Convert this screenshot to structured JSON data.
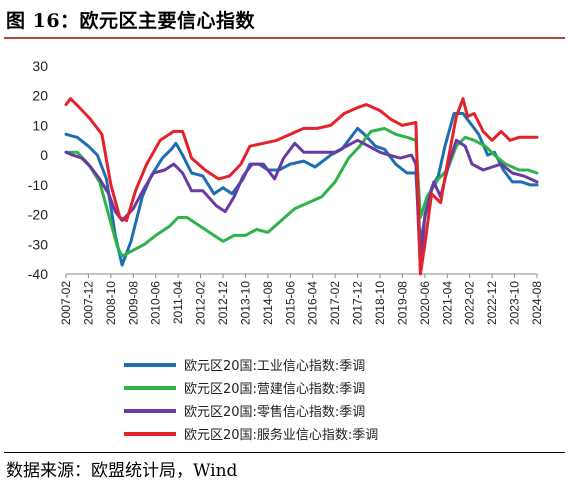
{
  "title": "图 16：欧元区主要信心指数",
  "source": "数据来源：欧盟统计局，Wind",
  "chart_data": {
    "type": "line",
    "title": "",
    "xlabel": "",
    "ylabel": "",
    "ylim": [
      -40,
      30
    ],
    "yticks": [
      30,
      20,
      10,
      0,
      -10,
      -20,
      -30,
      -40
    ],
    "xlim": [
      "2007-02",
      "2024-08"
    ],
    "xticks": [
      "2007-02",
      "2007-12",
      "2008-10",
      "2009-08",
      "2010-06",
      "2011-04",
      "2012-02",
      "2012-12",
      "2013-10",
      "2014-08",
      "2015-06",
      "2016-04",
      "2017-02",
      "2017-12",
      "2018-10",
      "2019-08",
      "2020-06",
      "2021-04",
      "2022-02",
      "2022-12",
      "2023-10",
      "2024-08"
    ],
    "grid": false,
    "legend_position": "bottom",
    "series": [
      {
        "name": "欧元区20国:工业信心指数:季调",
        "color": "#1f6db3",
        "points": [
          [
            "2007-02",
            7
          ],
          [
            "2007-07",
            6
          ],
          [
            "2007-12",
            3
          ],
          [
            "2008-04",
            0
          ],
          [
            "2008-08",
            -8
          ],
          [
            "2008-12",
            -27
          ],
          [
            "2009-03",
            -37
          ],
          [
            "2009-07",
            -29
          ],
          [
            "2009-12",
            -14
          ],
          [
            "2010-04",
            -7
          ],
          [
            "2010-09",
            -1
          ],
          [
            "2011-01",
            2
          ],
          [
            "2011-03",
            4
          ],
          [
            "2011-06",
            0
          ],
          [
            "2011-10",
            -6
          ],
          [
            "2012-03",
            -7
          ],
          [
            "2012-08",
            -13
          ],
          [
            "2012-12",
            -11
          ],
          [
            "2013-04",
            -13
          ],
          [
            "2013-09",
            -8
          ],
          [
            "2013-12",
            -3
          ],
          [
            "2014-04",
            -3
          ],
          [
            "2014-08",
            -5
          ],
          [
            "2015-01",
            -5
          ],
          [
            "2015-06",
            -3
          ],
          [
            "2015-12",
            -2
          ],
          [
            "2016-05",
            -4
          ],
          [
            "2016-12",
            0
          ],
          [
            "2017-05",
            2
          ],
          [
            "2017-12",
            9
          ],
          [
            "2018-03",
            7
          ],
          [
            "2018-08",
            3
          ],
          [
            "2018-12",
            2
          ],
          [
            "2019-05",
            -3
          ],
          [
            "2019-10",
            -6
          ],
          [
            "2020-02",
            -6
          ],
          [
            "2020-04",
            -30
          ],
          [
            "2020-06",
            -21
          ],
          [
            "2020-09",
            -11
          ],
          [
            "2020-12",
            -7
          ],
          [
            "2021-03",
            3
          ],
          [
            "2021-07",
            14
          ],
          [
            "2021-11",
            14
          ],
          [
            "2022-03",
            10
          ],
          [
            "2022-06",
            7
          ],
          [
            "2022-10",
            0
          ],
          [
            "2023-01",
            1
          ],
          [
            "2023-05",
            -5
          ],
          [
            "2023-09",
            -9
          ],
          [
            "2024-01",
            -9
          ],
          [
            "2024-05",
            -10
          ],
          [
            "2024-08",
            -10
          ]
        ]
      },
      {
        "name": "欧元区20国:营建信心指数:季调",
        "color": "#2db34a",
        "points": [
          [
            "2007-02",
            1
          ],
          [
            "2007-07",
            1
          ],
          [
            "2007-12",
            -3
          ],
          [
            "2008-05",
            -9
          ],
          [
            "2008-09",
            -20
          ],
          [
            "2009-01",
            -31
          ],
          [
            "2009-03",
            -34
          ],
          [
            "2009-08",
            -32
          ],
          [
            "2010-01",
            -30
          ],
          [
            "2010-06",
            -27
          ],
          [
            "2010-12",
            -24
          ],
          [
            "2011-04",
            -21
          ],
          [
            "2011-08",
            -21
          ],
          [
            "2012-02",
            -24
          ],
          [
            "2012-08",
            -27
          ],
          [
            "2012-12",
            -29
          ],
          [
            "2013-05",
            -27
          ],
          [
            "2013-10",
            -27
          ],
          [
            "2014-03",
            -25
          ],
          [
            "2014-08",
            -26
          ],
          [
            "2015-02",
            -22
          ],
          [
            "2015-08",
            -18
          ],
          [
            "2016-02",
            -16
          ],
          [
            "2016-08",
            -14
          ],
          [
            "2017-02",
            -9
          ],
          [
            "2017-08",
            -1
          ],
          [
            "2018-01",
            3
          ],
          [
            "2018-06",
            8
          ],
          [
            "2018-12",
            9
          ],
          [
            "2019-05",
            7
          ],
          [
            "2019-10",
            6
          ],
          [
            "2020-02",
            5
          ],
          [
            "2020-04",
            -21
          ],
          [
            "2020-07",
            -14
          ],
          [
            "2020-12",
            -8
          ],
          [
            "2021-04",
            -5
          ],
          [
            "2021-08",
            3
          ],
          [
            "2021-12",
            6
          ],
          [
            "2022-04",
            5
          ],
          [
            "2022-09",
            3
          ],
          [
            "2023-01",
            0
          ],
          [
            "2023-06",
            -3
          ],
          [
            "2023-12",
            -5
          ],
          [
            "2024-04",
            -5
          ],
          [
            "2024-08",
            -6
          ]
        ]
      },
      {
        "name": "欧元区20国:零售信心指数:季调",
        "color": "#6a3aa3",
        "points": [
          [
            "2007-02",
            1
          ],
          [
            "2007-05",
            0
          ],
          [
            "2007-09",
            -1
          ],
          [
            "2008-01",
            -4
          ],
          [
            "2008-05",
            -8
          ],
          [
            "2008-09",
            -13
          ],
          [
            "2008-12",
            -19
          ],
          [
            "2009-03",
            -22
          ],
          [
            "2009-08",
            -18
          ],
          [
            "2010-01",
            -11
          ],
          [
            "2010-05",
            -6
          ],
          [
            "2010-10",
            -5
          ],
          [
            "2011-02",
            -3
          ],
          [
            "2011-06",
            -6
          ],
          [
            "2011-10",
            -12
          ],
          [
            "2012-03",
            -12
          ],
          [
            "2012-09",
            -17
          ],
          [
            "2013-01",
            -19
          ],
          [
            "2013-05",
            -14
          ],
          [
            "2013-09",
            -7
          ],
          [
            "2014-01",
            -3
          ],
          [
            "2014-06",
            -3
          ],
          [
            "2014-11",
            -8
          ],
          [
            "2015-03",
            -1
          ],
          [
            "2015-08",
            4
          ],
          [
            "2015-12",
            1
          ],
          [
            "2016-05",
            1
          ],
          [
            "2016-10",
            1
          ],
          [
            "2017-02",
            1
          ],
          [
            "2017-07",
            3
          ],
          [
            "2017-12",
            5
          ],
          [
            "2018-05",
            3
          ],
          [
            "2018-10",
            1
          ],
          [
            "2019-02",
            0
          ],
          [
            "2019-07",
            -1
          ],
          [
            "2019-12",
            0
          ],
          [
            "2020-02",
            -3
          ],
          [
            "2020-04",
            -39
          ],
          [
            "2020-06",
            -20
          ],
          [
            "2020-10",
            -9
          ],
          [
            "2021-01",
            -14
          ],
          [
            "2021-05",
            -2
          ],
          [
            "2021-08",
            5
          ],
          [
            "2021-12",
            3
          ],
          [
            "2022-03",
            -3
          ],
          [
            "2022-08",
            -5
          ],
          [
            "2022-12",
            -4
          ],
          [
            "2023-04",
            -3
          ],
          [
            "2023-09",
            -6
          ],
          [
            "2024-02",
            -7
          ],
          [
            "2024-08",
            -9
          ]
        ]
      },
      {
        "name": "欧元区20国:服务业信心指数:季调",
        "color": "#e4222c",
        "points": [
          [
            "2007-02",
            17
          ],
          [
            "2007-04",
            19
          ],
          [
            "2007-08",
            16
          ],
          [
            "2008-01",
            12
          ],
          [
            "2008-06",
            7
          ],
          [
            "2008-10",
            -10
          ],
          [
            "2009-02",
            -21
          ],
          [
            "2009-05",
            -22
          ],
          [
            "2009-09",
            -12
          ],
          [
            "2010-02",
            -3
          ],
          [
            "2010-08",
            5
          ],
          [
            "2011-02",
            8
          ],
          [
            "2011-06",
            8
          ],
          [
            "2011-10",
            -1
          ],
          [
            "2012-04",
            -5
          ],
          [
            "2012-10",
            -8
          ],
          [
            "2013-03",
            -7
          ],
          [
            "2013-08",
            -3
          ],
          [
            "2013-12",
            3
          ],
          [
            "2014-06",
            4
          ],
          [
            "2014-12",
            5
          ],
          [
            "2015-06",
            7
          ],
          [
            "2015-12",
            9
          ],
          [
            "2016-06",
            9
          ],
          [
            "2016-12",
            10
          ],
          [
            "2017-06",
            14
          ],
          [
            "2017-12",
            16
          ],
          [
            "2018-04",
            17
          ],
          [
            "2018-10",
            15
          ],
          [
            "2019-03",
            12
          ],
          [
            "2019-08",
            10
          ],
          [
            "2020-02",
            11
          ],
          [
            "2020-04",
            -40
          ],
          [
            "2020-06",
            -30
          ],
          [
            "2020-09",
            -13
          ],
          [
            "2021-01",
            -16
          ],
          [
            "2021-04",
            -3
          ],
          [
            "2021-08",
            13
          ],
          [
            "2021-11",
            19
          ],
          [
            "2022-01",
            13
          ],
          [
            "2022-04",
            14
          ],
          [
            "2022-08",
            8
          ],
          [
            "2022-12",
            5
          ],
          [
            "2023-04",
            8
          ],
          [
            "2023-08",
            5
          ],
          [
            "2023-12",
            6
          ],
          [
            "2024-04",
            6
          ],
          [
            "2024-08",
            6
          ]
        ]
      }
    ]
  }
}
